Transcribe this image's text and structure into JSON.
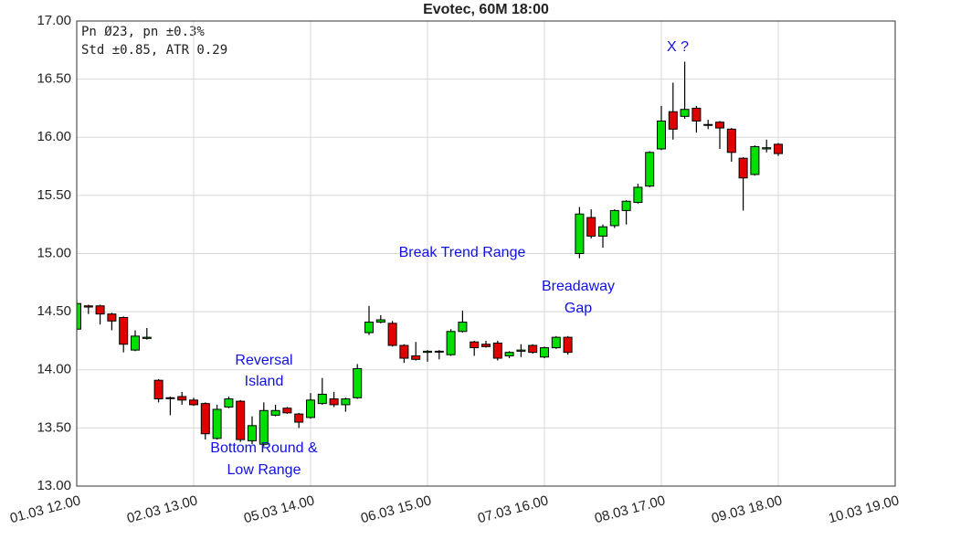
{
  "chart_data": {
    "type": "candlestick",
    "title": "Evotec, 60M 18:00",
    "info": [
      "Pn  Ø23, pn ±0.3%",
      "Std ±0.85, ATR 0.29"
    ],
    "annotations": [
      "X ?",
      "Break Trend Range",
      "Breadaway",
      "Gap",
      "Reversal",
      "Island",
      "Bottom Round &",
      "Low Range"
    ],
    "up_color": "#00e000",
    "down_color": "#e00000",
    "grid": true,
    "xlim": [
      0,
      70
    ],
    "xticks": [
      {
        "value": 0,
        "label": "01.03 12.00"
      },
      {
        "value": 10,
        "label": "02.03 13.00"
      },
      {
        "value": 20,
        "label": "05.03 14.00"
      },
      {
        "value": 30,
        "label": "06.03 15.00"
      },
      {
        "value": 40,
        "label": "07.03 16.00"
      },
      {
        "value": 50,
        "label": "08.03 17.00"
      },
      {
        "value": 60,
        "label": "09.03 18.00"
      },
      {
        "value": 70,
        "label": "10.03 19.00"
      }
    ],
    "ylim": [
      13,
      17
    ],
    "yticks": [
      {
        "value": 13,
        "label": "13.00"
      },
      {
        "value": 13.5,
        "label": "13.50"
      },
      {
        "value": 14,
        "label": "14.00"
      },
      {
        "value": 14.5,
        "label": "14.50"
      },
      {
        "value": 15,
        "label": "15.00"
      },
      {
        "value": 15.5,
        "label": "15.50"
      },
      {
        "value": 16,
        "label": "16.00"
      },
      {
        "value": 16.5,
        "label": "16.50"
      },
      {
        "value": 17,
        "label": "17.00"
      }
    ],
    "open": [
      14.35,
      14.55,
      14.55,
      14.48,
      14.45,
      14.17,
      14.27,
      13.91,
      13.76,
      13.77,
      13.74,
      13.71,
      13.41,
      13.68,
      13.73,
      13.39,
      13.36,
      13.61,
      13.67,
      13.62,
      13.59,
      13.71,
      13.75,
      13.7,
      13.76,
      14.32,
      14.41,
      14.4,
      14.21,
      14.12,
      14.15,
      14.16,
      14.13,
      14.33,
      14.24,
      14.22,
      14.23,
      14.12,
      14.16,
      14.21,
      14.11,
      14.19,
      14.28,
      15.0,
      15.31,
      15.15,
      15.24,
      15.37,
      15.44,
      15.58,
      15.9,
      16.22,
      16.18,
      16.25,
      16.11,
      16.13,
      16.07,
      15.82,
      15.68,
      15.9,
      15.94
    ],
    "high": [
      14.6,
      14.56,
      14.56,
      14.49,
      14.46,
      14.34,
      14.36,
      13.92,
      13.77,
      13.81,
      13.76,
      13.72,
      13.7,
      13.77,
      13.74,
      13.6,
      13.72,
      13.7,
      13.68,
      13.63,
      13.8,
      13.93,
      13.81,
      13.76,
      14.05,
      14.55,
      14.47,
      14.42,
      14.22,
      14.24,
      14.17,
      14.17,
      14.35,
      14.51,
      14.25,
      14.25,
      14.25,
      14.16,
      14.22,
      14.22,
      14.2,
      14.29,
      14.29,
      15.4,
      15.38,
      15.25,
      15.38,
      15.46,
      15.6,
      15.88,
      16.27,
      16.47,
      16.65,
      16.27,
      16.15,
      16.14,
      16.08,
      15.83,
      15.93,
      15.98,
      15.95
    ],
    "low": [
      14.33,
      14.48,
      14.39,
      14.34,
      14.15,
      14.16,
      14.26,
      13.72,
      13.61,
      13.7,
      13.69,
      13.4,
      13.4,
      13.67,
      13.38,
      13.36,
      13.34,
      13.6,
      13.62,
      13.5,
      13.58,
      13.7,
      13.68,
      13.64,
      13.75,
      14.3,
      14.4,
      14.2,
      14.06,
      14.08,
      14.07,
      14.09,
      14.12,
      14.32,
      14.12,
      14.19,
      14.08,
      14.1,
      14.11,
      14.14,
      14.1,
      14.18,
      14.13,
      14.96,
      15.13,
      15.05,
      15.22,
      15.25,
      15.43,
      15.57,
      15.89,
      15.98,
      16.16,
      16.04,
      16.07,
      15.9,
      15.79,
      15.37,
      15.67,
      15.87,
      15.84
    ],
    "close": [
      14.57,
      14.54,
      14.48,
      14.42,
      14.22,
      14.29,
      14.28,
      13.75,
      13.76,
      13.74,
      13.7,
      13.45,
      13.66,
      13.75,
      13.4,
      13.52,
      13.65,
      13.65,
      13.63,
      13.55,
      13.74,
      13.79,
      13.7,
      13.75,
      14.01,
      14.41,
      14.43,
      14.21,
      14.1,
      14.09,
      14.16,
      14.16,
      14.33,
      14.41,
      14.19,
      14.2,
      14.1,
      14.15,
      14.17,
      14.15,
      14.19,
      14.28,
      14.15,
      15.34,
      15.15,
      15.23,
      15.37,
      15.45,
      15.57,
      15.87,
      16.14,
      16.07,
      16.24,
      16.14,
      16.11,
      16.08,
      15.87,
      15.65,
      15.92,
      15.91,
      15.86
    ]
  }
}
